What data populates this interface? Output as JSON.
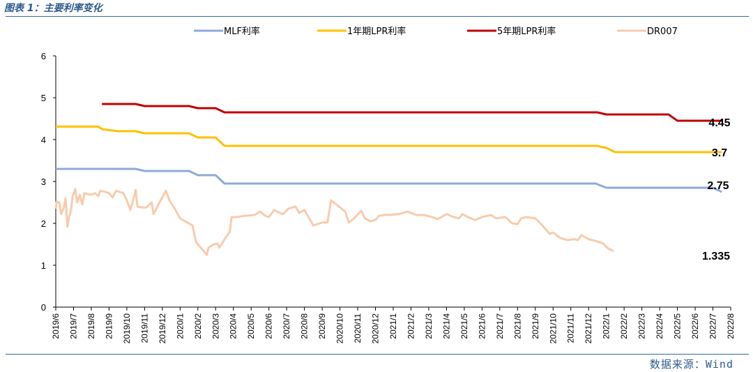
{
  "figure_title": "图表 1：主要利率变化",
  "source": "数据来源：Wind",
  "chart_data": {
    "type": "line",
    "title": "",
    "xlabel": "",
    "ylabel": "",
    "ylim": [
      0,
      6
    ],
    "yticks": [
      "0",
      "1",
      "2",
      "3",
      "4",
      "5",
      "6"
    ],
    "categories": [
      "2019/6",
      "2019/7",
      "2019/8",
      "2019/9",
      "2019/10",
      "2019/11",
      "2019/12",
      "2020/1",
      "2020/2",
      "2020/3",
      "2020/4",
      "2020/5",
      "2020/6",
      "2020/7",
      "2020/8",
      "2020/9",
      "2020/10",
      "2020/11",
      "2020/12",
      "2021/1",
      "2021/2",
      "2021/3",
      "2021/4",
      "2021/5",
      "2021/6",
      "2021/7",
      "2021/8",
      "2021/9",
      "2021/10",
      "2021/11",
      "2021/12",
      "2022/1",
      "2022/2",
      "2022/3",
      "2022/4",
      "2022/5",
      "2022/6",
      "2022/7",
      "2022/8"
    ],
    "grid": false,
    "legend_position": "top",
    "series": [
      {
        "name": "MLF利率",
        "color": "#8eaadb",
        "points": [
          [
            0,
            3.3
          ],
          [
            4.5,
            3.3
          ],
          [
            5,
            3.25
          ],
          [
            7.5,
            3.25
          ],
          [
            8,
            3.15
          ],
          [
            9,
            3.15
          ],
          [
            9.5,
            2.95
          ],
          [
            30.4,
            2.95
          ],
          [
            31,
            2.85
          ],
          [
            37,
            2.85
          ],
          [
            37.5,
            2.75
          ]
        ]
      },
      {
        "name": "1年期LPR利率",
        "color": "#ffc000",
        "points": [
          [
            0,
            4.31
          ],
          [
            2.4,
            4.31
          ],
          [
            2.6,
            4.25
          ],
          [
            3.5,
            4.2
          ],
          [
            4.5,
            4.2
          ],
          [
            5,
            4.15
          ],
          [
            7.5,
            4.15
          ],
          [
            8,
            4.05
          ],
          [
            9,
            4.05
          ],
          [
            9.5,
            3.85
          ],
          [
            10,
            3.85
          ],
          [
            30.5,
            3.85
          ],
          [
            31,
            3.8
          ],
          [
            31.5,
            3.7
          ],
          [
            37.5,
            3.7
          ]
        ]
      },
      {
        "name": "5年期LPR利率",
        "color": "#c00000",
        "points": [
          [
            2.6,
            4.85
          ],
          [
            4.5,
            4.85
          ],
          [
            5,
            4.8
          ],
          [
            7.5,
            4.8
          ],
          [
            8,
            4.75
          ],
          [
            9,
            4.75
          ],
          [
            9.5,
            4.65
          ],
          [
            30.5,
            4.65
          ],
          [
            31,
            4.6
          ],
          [
            34.5,
            4.6
          ],
          [
            35,
            4.45
          ],
          [
            37.5,
            4.45
          ]
        ]
      },
      {
        "name": "DR007",
        "color": "#f8cbad",
        "points": [
          [
            0,
            2.35
          ],
          [
            0.05,
            2.52
          ],
          [
            0.2,
            2.5
          ],
          [
            0.3,
            2.22
          ],
          [
            0.45,
            2.38
          ],
          [
            0.55,
            2.6
          ],
          [
            0.65,
            1.92
          ],
          [
            0.75,
            2.15
          ],
          [
            0.85,
            2.3
          ],
          [
            0.95,
            2.65
          ],
          [
            1.1,
            2.82
          ],
          [
            1.2,
            2.5
          ],
          [
            1.35,
            2.68
          ],
          [
            1.5,
            2.45
          ],
          [
            1.6,
            2.72
          ],
          [
            1.8,
            2.7
          ],
          [
            2,
            2.68
          ],
          [
            2.2,
            2.72
          ],
          [
            2.4,
            2.65
          ],
          [
            2.5,
            2.78
          ],
          [
            2.8,
            2.75
          ],
          [
            3,
            2.72
          ],
          [
            3.2,
            2.62
          ],
          [
            3.4,
            2.78
          ],
          [
            3.8,
            2.72
          ],
          [
            4,
            2.55
          ],
          [
            4.2,
            2.32
          ],
          [
            4.4,
            2.62
          ],
          [
            4.5,
            2.8
          ],
          [
            4.6,
            2.4
          ],
          [
            4.8,
            2.38
          ],
          [
            5.1,
            2.38
          ],
          [
            5.4,
            2.5
          ],
          [
            5.5,
            2.22
          ],
          [
            5.7,
            2.38
          ],
          [
            5.9,
            2.55
          ],
          [
            6.2,
            2.78
          ],
          [
            6.4,
            2.55
          ],
          [
            6.7,
            2.35
          ],
          [
            7,
            2.12
          ],
          [
            7.4,
            2.02
          ],
          [
            7.7,
            1.95
          ],
          [
            7.9,
            1.55
          ],
          [
            8.1,
            1.45
          ],
          [
            8.3,
            1.35
          ],
          [
            8.5,
            1.25
          ],
          [
            8.6,
            1.42
          ],
          [
            8.9,
            1.5
          ],
          [
            9.1,
            1.52
          ],
          [
            9.2,
            1.42
          ],
          [
            9.4,
            1.55
          ],
          [
            9.6,
            1.68
          ],
          [
            9.8,
            1.8
          ],
          [
            9.9,
            2.15
          ],
          [
            10.2,
            2.15
          ],
          [
            10.6,
            2.18
          ],
          [
            11.2,
            2.2
          ],
          [
            11.5,
            2.28
          ],
          [
            11.8,
            2.18
          ],
          [
            12,
            2.15
          ],
          [
            12.3,
            2.32
          ],
          [
            12.6,
            2.25
          ],
          [
            12.8,
            2.22
          ],
          [
            13.1,
            2.35
          ],
          [
            13.5,
            2.4
          ],
          [
            13.7,
            2.25
          ],
          [
            14,
            2.32
          ],
          [
            14.5,
            1.95
          ],
          [
            15,
            2.02
          ],
          [
            15.3,
            2.02
          ],
          [
            15.5,
            2.55
          ],
          [
            15.8,
            2.45
          ],
          [
            16.3,
            2.28
          ],
          [
            16.5,
            2.02
          ],
          [
            16.8,
            2.12
          ],
          [
            17.2,
            2.3
          ],
          [
            17.4,
            2.12
          ],
          [
            17.7,
            2.05
          ],
          [
            18,
            2.08
          ],
          [
            18.2,
            2.18
          ],
          [
            18.5,
            2.2
          ],
          [
            18.8,
            2.2
          ],
          [
            19.3,
            2.22
          ],
          [
            19.8,
            2.28
          ],
          [
            20.3,
            2.2
          ],
          [
            20.7,
            2.2
          ],
          [
            21.2,
            2.15
          ],
          [
            21.5,
            2.1
          ],
          [
            22,
            2.22
          ],
          [
            22.4,
            2.15
          ],
          [
            22.7,
            2.12
          ],
          [
            22.9,
            2.22
          ],
          [
            23.2,
            2.15
          ],
          [
            23.6,
            2.08
          ],
          [
            24,
            2.15
          ],
          [
            24.5,
            2.2
          ],
          [
            24.8,
            2.12
          ],
          [
            25.3,
            2.15
          ],
          [
            25.7,
            2.0
          ],
          [
            26,
            1.98
          ],
          [
            26.2,
            2.12
          ],
          [
            26.5,
            2.15
          ],
          [
            27,
            2.12
          ],
          [
            27.4,
            1.95
          ],
          [
            27.8,
            1.75
          ],
          [
            28,
            1.78
          ],
          [
            28.4,
            1.65
          ],
          [
            28.8,
            1.6
          ],
          [
            29.2,
            1.62
          ],
          [
            29.4,
            1.6
          ],
          [
            29.6,
            1.72
          ],
          [
            30,
            1.62
          ],
          [
            30.4,
            1.58
          ],
          [
            30.8,
            1.52
          ],
          [
            31.1,
            1.4
          ],
          [
            31.4,
            1.335
          ]
        ]
      }
    ],
    "end_labels": [
      {
        "series": "5年期LPR利率",
        "text": "4.45",
        "y": 4.45
      },
      {
        "series": "1年期LPR利率",
        "text": "3.7",
        "y": 3.7
      },
      {
        "series": "MLF利率",
        "text": "2.75",
        "y": 2.75
      },
      {
        "series": "DR007",
        "text": "1.335",
        "y": 1.335
      }
    ]
  }
}
